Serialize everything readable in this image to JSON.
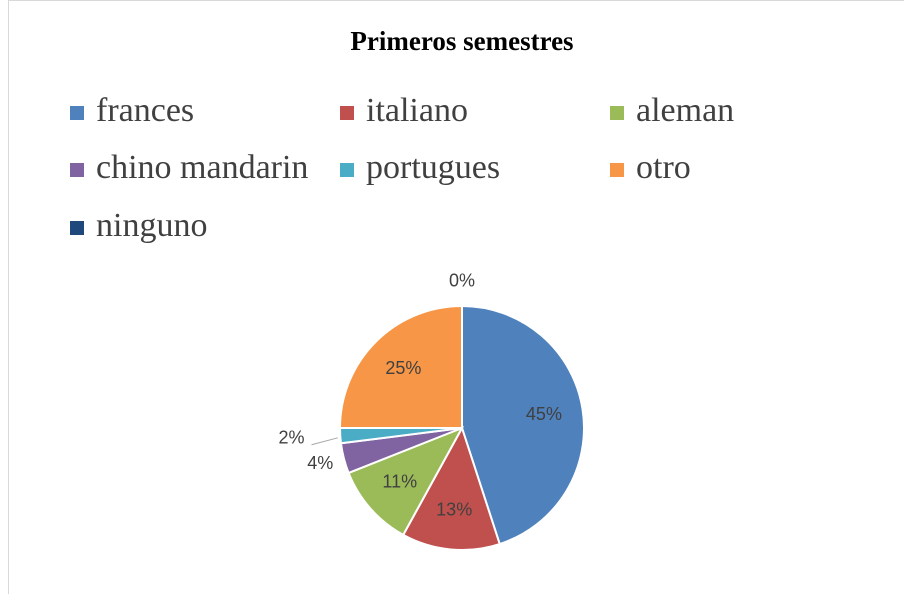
{
  "chart_data": {
    "type": "pie",
    "title": "Primeros semestres",
    "categories": [
      "frances",
      "italiano",
      "aleman",
      "chino mandarin",
      "portugues",
      "otro",
      "ninguno"
    ],
    "values": [
      45,
      13,
      11,
      4,
      2,
      25,
      0
    ],
    "value_labels": [
      "45%",
      "13%",
      "11%",
      "4%",
      "2%",
      "25%",
      "0%"
    ],
    "colors": [
      "#4f81bd",
      "#c0504d",
      "#9bbb59",
      "#8064a2",
      "#4bacc6",
      "#f79646",
      "#1f497d"
    ],
    "legend": "top"
  }
}
